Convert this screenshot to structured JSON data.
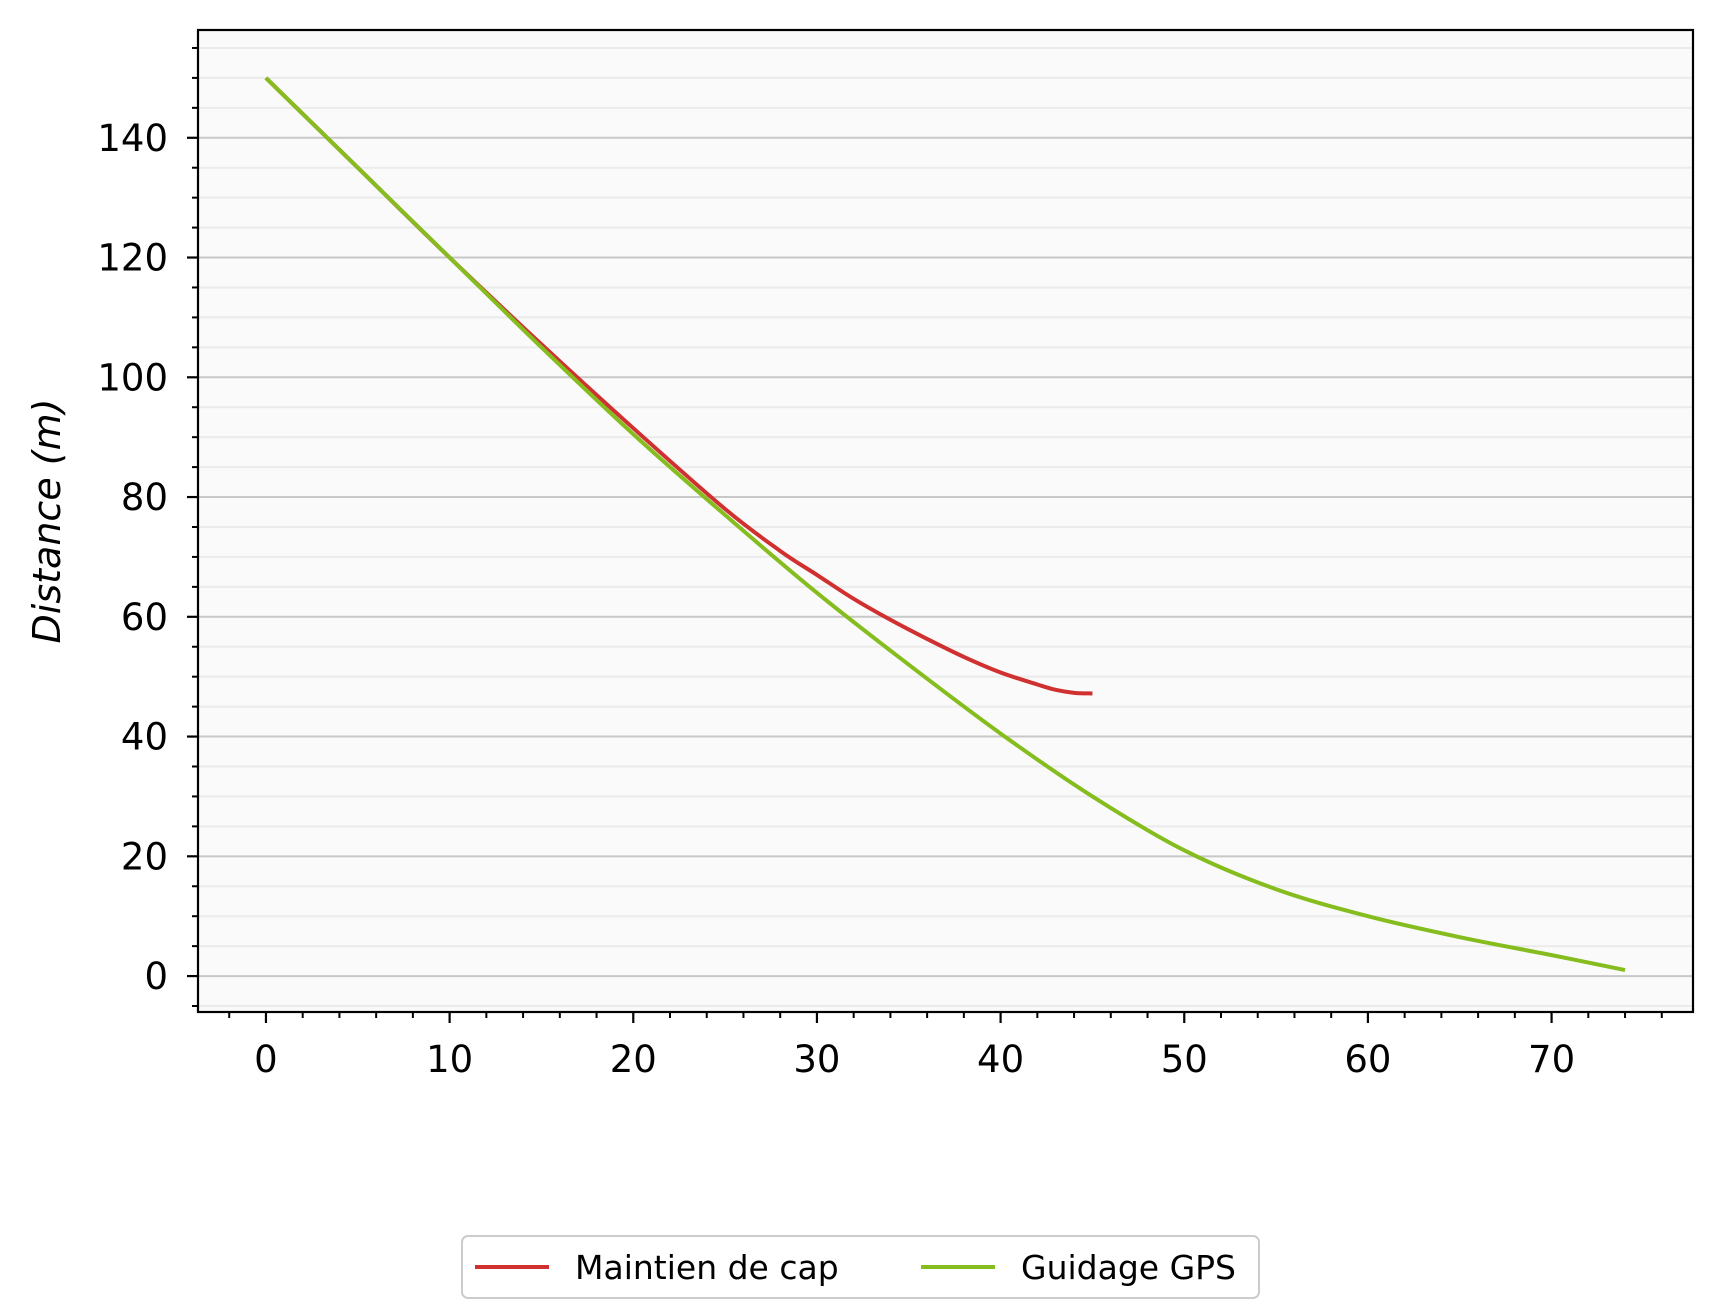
{
  "chart_data": {
    "type": "line",
    "title": "",
    "xlabel": "",
    "ylabel": "Distance (m)",
    "xlim": [
      -3.7,
      77.7
    ],
    "ylim": [
      -6,
      158
    ],
    "x_ticks": [
      0,
      10,
      20,
      30,
      40,
      50,
      60,
      70
    ],
    "x_minor_step": 2,
    "y_ticks": [
      0,
      20,
      40,
      60,
      80,
      100,
      120,
      140
    ],
    "y_minor_step": 5,
    "grid": true,
    "legend": {
      "placement": "bottom-center",
      "columns": 2
    },
    "series": [
      {
        "name": "Maintien de cap",
        "color": "#d03030",
        "x": [
          0,
          5,
          10,
          15,
          20,
          25,
          28,
          30,
          32,
          34,
          36,
          38,
          40,
          42,
          43,
          44,
          45
        ],
        "y": [
          150,
          135,
          120,
          105.5,
          91.5,
          78,
          71,
          67,
          63,
          59.5,
          56.3,
          53.3,
          50.7,
          48.7,
          47.8,
          47.3,
          47.2
        ]
      },
      {
        "name": "Guidage GPS",
        "color": "#85bc1e",
        "x": [
          0,
          5,
          10,
          15,
          20,
          25,
          30,
          35,
          40,
          45,
          50,
          55,
          60,
          65,
          70,
          74
        ],
        "y": [
          150,
          135,
          120,
          105,
          90.5,
          77,
          64,
          52,
          40.5,
          30,
          21,
          14.5,
          10,
          6.5,
          3.5,
          1
        ]
      }
    ]
  },
  "colors": {
    "axis": "#000000",
    "major_grid": "#c8c8c8",
    "minor_grid": "#ebebeb",
    "plot_bg": "#fafafa"
  }
}
